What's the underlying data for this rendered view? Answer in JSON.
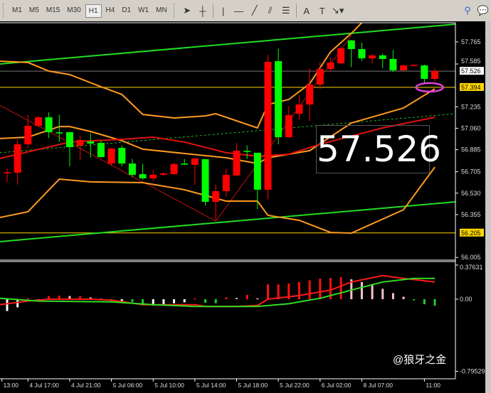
{
  "toolbar": {
    "timeframes": [
      "M1",
      "M5",
      "M15",
      "M30",
      "H1",
      "H4",
      "D1",
      "W1",
      "MN"
    ],
    "selected": "H1",
    "tools": [
      {
        "name": "cursor-icon",
        "glyph": "➤"
      },
      {
        "name": "crosshair-icon",
        "glyph": "┼"
      },
      {
        "name": "vertical-line-icon",
        "glyph": "|"
      },
      {
        "name": "horizontal-line-icon",
        "glyph": "—"
      },
      {
        "name": "trendline-icon",
        "glyph": "╱"
      },
      {
        "name": "channel-icon",
        "glyph": "⫽"
      },
      {
        "name": "fibonacci-icon",
        "glyph": "☰"
      },
      {
        "name": "text-icon",
        "glyph": "A"
      },
      {
        "name": "text-label-icon",
        "glyph": "T"
      },
      {
        "name": "arrows-dropdown-icon",
        "glyph": "↘▾"
      }
    ],
    "right": [
      {
        "name": "search-icon",
        "glyph": "⚲"
      },
      {
        "name": "chat-icon",
        "glyph": "💬"
      }
    ]
  },
  "big_price": "57.526",
  "watermark": "@狼牙之金",
  "colors": {
    "up": "#ff0000",
    "down": "#00ff00",
    "bollinger": "#ff9a1e",
    "ma": "#e01010",
    "channel": "#22dd22",
    "hline": "#ffd700",
    "ellipse": "#e040e0"
  },
  "chart_data": [
    {
      "type": "candlestick",
      "ylim": [
        55.96,
        57.95
      ],
      "price_ticks": [
        "57.765",
        "57.585",
        "57.235",
        "57.060",
        "56.885",
        "56.705",
        "56.530",
        "56.355",
        "56.005"
      ],
      "price_tick_values": [
        57.765,
        57.585,
        57.235,
        57.06,
        56.885,
        56.705,
        56.53,
        56.355,
        56.005
      ],
      "price_labels": [
        {
          "text": "57.526",
          "value": 57.526,
          "style": "current"
        },
        {
          "text": "57.394",
          "value": 57.394,
          "style": "hline"
        },
        {
          "text": "56.205",
          "value": 56.205,
          "style": "hline"
        }
      ],
      "time_labels": [
        {
          "text": "13:00",
          "index": -0.5
        },
        {
          "text": "4 Jul 17:00",
          "index": 2
        },
        {
          "text": "4 Jul 21:00",
          "index": 6
        },
        {
          "text": "5 Jul 06:00",
          "index": 10
        },
        {
          "text": "5 Jul 10:00",
          "index": 14
        },
        {
          "text": "5 Jul 14:00",
          "index": 18
        },
        {
          "text": "5 Jul 18:00",
          "index": 22
        },
        {
          "text": "5 Jul 22:00",
          "index": 26
        },
        {
          "text": "6 Jul 02:00",
          "index": 30
        },
        {
          "text": "8 Jul 07:00",
          "index": 34
        },
        {
          "text": "11:00",
          "index": 40
        }
      ],
      "ohlc": [
        [
          56.697,
          56.73,
          56.62,
          56.697
        ],
        [
          56.697,
          56.97,
          56.6,
          56.929
        ],
        [
          56.929,
          57.17,
          56.9,
          57.08
        ],
        [
          57.08,
          57.16,
          57.07,
          57.15
        ],
        [
          57.15,
          57.19,
          56.98,
          57.028
        ],
        [
          57.022,
          57.17,
          56.95,
          57.021
        ],
        [
          57.028,
          57.03,
          56.75,
          56.906
        ],
        [
          56.918,
          57.0,
          56.8,
          56.964
        ],
        [
          56.952,
          57.02,
          56.82,
          56.935
        ],
        [
          56.941,
          56.96,
          56.82,
          56.825
        ],
        [
          56.772,
          56.9,
          56.75,
          56.894
        ],
        [
          56.9,
          56.92,
          56.75,
          56.772
        ],
        [
          56.772,
          56.81,
          56.66,
          56.68
        ],
        [
          56.685,
          56.77,
          56.64,
          56.651
        ],
        [
          56.651,
          56.72,
          56.63,
          56.68
        ],
        [
          56.68,
          56.7,
          56.67,
          56.691
        ],
        [
          56.685,
          56.78,
          56.68,
          56.767
        ],
        [
          56.767,
          56.81,
          56.76,
          56.766
        ],
        [
          56.761,
          56.82,
          56.6,
          56.813
        ],
        [
          56.807,
          56.81,
          56.43,
          56.459
        ],
        [
          56.459,
          56.6,
          56.3,
          56.546
        ],
        [
          56.546,
          56.73,
          56.5,
          56.68
        ],
        [
          56.674,
          56.94,
          56.67,
          56.877
        ],
        [
          56.871,
          56.92,
          56.81,
          56.87
        ],
        [
          56.86,
          56.86,
          56.4,
          56.558
        ],
        [
          56.558,
          57.66,
          56.48,
          57.602
        ],
        [
          57.608,
          57.71,
          56.93,
          56.987
        ],
        [
          56.987,
          57.24,
          56.98,
          57.167
        ],
        [
          57.179,
          57.33,
          57.13,
          57.254
        ],
        [
          57.254,
          57.55,
          57.12,
          57.417
        ],
        [
          57.417,
          57.6,
          57.38,
          57.544
        ],
        [
          57.544,
          57.64,
          57.52,
          57.597
        ],
        [
          57.591,
          57.73,
          57.58,
          57.713
        ],
        [
          57.777,
          57.78,
          57.56,
          57.707
        ],
        [
          57.707,
          57.76,
          57.61,
          57.631
        ],
        [
          57.631,
          57.67,
          57.59,
          57.655
        ],
        [
          57.655,
          57.67,
          57.55,
          57.626
        ],
        [
          57.626,
          57.7,
          57.52,
          57.533
        ],
        [
          57.533,
          57.58,
          57.53,
          57.573
        ],
        [
          57.573,
          57.58,
          57.56,
          57.574
        ],
        [
          57.573,
          57.58,
          57.43,
          57.463
        ],
        [
          57.463,
          57.55,
          57.44,
          57.527
        ]
      ],
      "bollinger_upper": [
        [
          -0.7,
          57.608
        ],
        [
          2,
          57.597
        ],
        [
          4,
          57.527
        ],
        [
          6,
          57.498
        ],
        [
          9,
          57.399
        ],
        [
          11,
          57.336
        ],
        [
          13,
          57.173
        ],
        [
          16,
          57.144
        ],
        [
          19,
          57.161
        ],
        [
          20,
          57.179
        ],
        [
          24,
          57.063
        ],
        [
          25,
          57.254
        ],
        [
          27,
          57.295
        ],
        [
          29,
          57.423
        ],
        [
          31,
          57.684
        ],
        [
          33,
          57.835
        ],
        [
          34,
          57.922
        ]
      ],
      "bollinger_middle": [
        [
          -0.7,
          56.976
        ],
        [
          2,
          56.987
        ],
        [
          5,
          57.074
        ],
        [
          6,
          57.074
        ],
        [
          8,
          57.034
        ],
        [
          11,
          56.958
        ],
        [
          13,
          56.889
        ],
        [
          17,
          56.854
        ],
        [
          21,
          56.819
        ],
        [
          24,
          56.772
        ],
        [
          25,
          56.819
        ],
        [
          29,
          56.877
        ],
        [
          33,
          57.103
        ],
        [
          38,
          57.225
        ],
        [
          41,
          57.382
        ]
      ],
      "bollinger_lower": [
        [
          -0.7,
          56.331
        ],
        [
          2,
          56.378
        ],
        [
          5,
          56.645
        ],
        [
          8,
          56.622
        ],
        [
          13,
          56.616
        ],
        [
          17,
          56.558
        ],
        [
          21,
          56.465
        ],
        [
          24,
          56.465
        ],
        [
          25,
          56.349
        ],
        [
          28,
          56.308
        ],
        [
          31,
          56.209
        ],
        [
          33,
          56.204
        ],
        [
          38,
          56.395
        ],
        [
          41,
          56.743
        ]
      ],
      "moving_average": [
        [
          -0.7,
          56.813
        ],
        [
          6,
          56.947
        ],
        [
          11,
          56.97
        ],
        [
          14,
          56.987
        ],
        [
          17,
          56.947
        ],
        [
          21,
          56.86
        ],
        [
          24,
          56.831
        ],
        [
          27,
          56.848
        ],
        [
          30,
          56.929
        ],
        [
          36,
          57.063
        ],
        [
          41,
          57.15
        ]
      ],
      "channel_upper": [
        [
          -0.7,
          57.585
        ],
        [
          43,
          57.91
        ]
      ],
      "channel_lower": [
        [
          -0.7,
          56.134
        ],
        [
          43,
          56.459
        ]
      ],
      "channel_middle_dotted": [
        [
          -0.7,
          56.86
        ],
        [
          43,
          57.179
        ]
      ],
      "zigzag": [
        [
          -0.7,
          57.248
        ],
        [
          20,
          56.302
        ],
        [
          33,
          57.817
        ]
      ],
      "hlines": [
        57.394,
        56.205
      ],
      "current_price": 57.526,
      "ellipse_at": [
        40.5,
        57.394
      ]
    },
    {
      "type": "histogram+lines",
      "ylim": [
        -0.79529,
        0.37631
      ],
      "ticks": [
        "0.37631",
        "0.00",
        "-0.79529"
      ],
      "tick_values": [
        0.37631,
        0,
        -0.79529
      ],
      "histogram": [
        -0.13,
        -0.09,
        0.01,
        0.0,
        0.035,
        0.04,
        0.035,
        0.035,
        0.02,
        0.005,
        -0.02,
        -0.02,
        -0.03,
        -0.07,
        -0.07,
        -0.07,
        -0.045,
        -0.035,
        0.01,
        -0.04,
        -0.045,
        0.02,
        0.013,
        0.048,
        0.01,
        0.163,
        0.163,
        0.173,
        0.19,
        0.208,
        0.227,
        0.235,
        0.243,
        0.22,
        0.19,
        0.163,
        0.115,
        0.067,
        0.027,
        -0.013,
        -0.056,
        -0.072
      ],
      "red_line": [
        [
          -0.7,
          -0.06
        ],
        [
          2,
          -0.02
        ],
        [
          4,
          0.0
        ],
        [
          8,
          0.0
        ],
        [
          10,
          -0.01
        ],
        [
          13,
          -0.06
        ],
        [
          18,
          -0.06
        ],
        [
          19,
          -0.08
        ],
        [
          22,
          -0.08
        ],
        [
          24,
          -0.07
        ],
        [
          25,
          0.0
        ],
        [
          28,
          0.04
        ],
        [
          31,
          0.1
        ],
        [
          33,
          0.19
        ],
        [
          36,
          0.26
        ],
        [
          38,
          0.23
        ],
        [
          41,
          0.19
        ]
      ],
      "green_line": [
        [
          -0.7,
          0.01
        ],
        [
          3,
          -0.02
        ],
        [
          10,
          -0.03
        ],
        [
          14,
          -0.06
        ],
        [
          18,
          -0.08
        ],
        [
          24,
          -0.08
        ],
        [
          27,
          -0.05
        ],
        [
          30,
          0.01
        ],
        [
          33,
          0.1
        ],
        [
          36,
          0.19
        ],
        [
          39,
          0.23
        ],
        [
          41,
          0.23
        ]
      ]
    }
  ]
}
